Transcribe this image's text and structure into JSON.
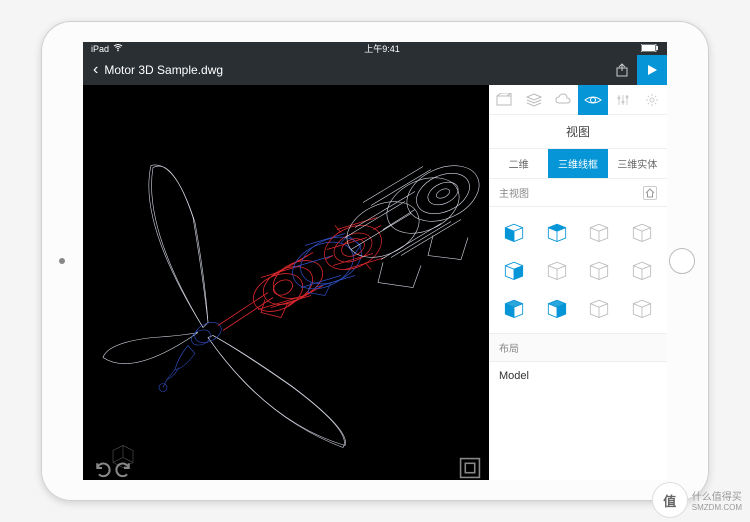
{
  "statusbar": {
    "carrier": "iPad",
    "time": "上午9:41"
  },
  "header": {
    "filename": "Motor 3D Sample.dwg"
  },
  "panel": {
    "title": "视图",
    "tabs": [
      "二维",
      "三维线框",
      "三维实体"
    ],
    "active_tab": 1,
    "main_view_label": "主视图",
    "layout_label": "布局",
    "layout_value": "Model"
  },
  "views": [
    {
      "fill": "front",
      "color": "#0696d7"
    },
    {
      "fill": "top",
      "color": "#0696d7"
    },
    {
      "fill": "none",
      "color": "#999"
    },
    {
      "fill": "none",
      "color": "#999"
    },
    {
      "fill": "right",
      "color": "#0696d7"
    },
    {
      "fill": "none",
      "color": "#999"
    },
    {
      "fill": "none",
      "color": "#999"
    },
    {
      "fill": "none",
      "color": "#999"
    },
    {
      "fill": "iso",
      "color": "#0696d7"
    },
    {
      "fill": "iso2",
      "color": "#0696d7"
    },
    {
      "fill": "none",
      "color": "#999"
    },
    {
      "fill": "none",
      "color": "#999"
    }
  ],
  "colors": {
    "accent": "#0696d7",
    "wire_main": "#d8dce8",
    "wire_red": "#e0282e",
    "wire_blue": "#3050c8",
    "canvas_bg": "#000000"
  },
  "watermark": {
    "badge": "值",
    "text1": "什么值得买",
    "text2": "SMZDM.COM"
  }
}
